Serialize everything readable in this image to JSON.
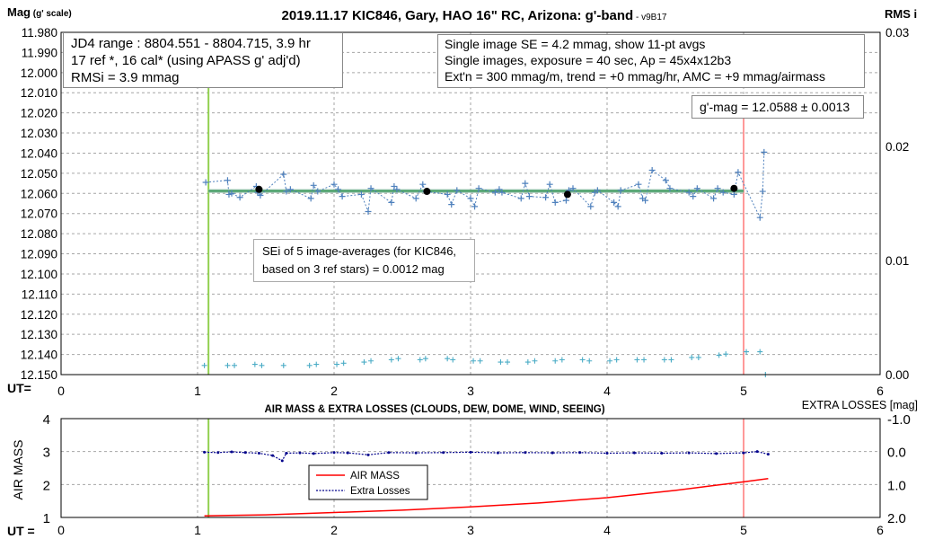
{
  "chart_data": [
    {
      "type": "scatter",
      "title": "2019.11.17 KIC846, Gary, HAO 16\" RC, Arizona: g'-band",
      "version": "- v9B17",
      "ylabel": "Mag",
      "ylabel_unit": "(g' scale)",
      "y2label": "RMS i",
      "xlabel": "UT=",
      "xlim": [
        0,
        6
      ],
      "ylim": [
        12.15,
        11.98
      ],
      "y2lim": [
        0,
        0.03
      ],
      "x_ticks": [
        "0",
        "1",
        "2",
        "3",
        "4",
        "5",
        "6"
      ],
      "y_ticks": [
        "11.980",
        "11.990",
        "12.000",
        "12.010",
        "12.020",
        "12.030",
        "12.040",
        "12.050",
        "12.060",
        "12.070",
        "12.080",
        "12.090",
        "12.100",
        "12.110",
        "12.120",
        "12.130",
        "12.140",
        "12.150"
      ],
      "y2_ticks": [
        "0.03",
        "0.02",
        "0.01",
        "0.00"
      ],
      "grid": true,
      "vertical_markers": {
        "start": {
          "x": 1.08,
          "color": "#92d050"
        },
        "end": {
          "x": 5.0,
          "color": "#ff9999"
        }
      },
      "mean_mag": 12.0588,
      "annotations": {
        "jd_box": [
          "JD4 range : 8804.551 - 8804.715,  3.9  hr",
          "17 ref *, 16 cal* (using APASS g' adj'd)",
          "RMSi = 3.9 mmag"
        ],
        "se_box": [
          "Single image SE = 4.2 mmag, show  11-pt avgs",
          "Single images, exposure = 40 sec, Ap = 45x4x12b3",
          "Ext'n = 300 mmag/m, trend =  +0 mmag/hr, AMC = +9 mmag/airmass"
        ],
        "gmag_box": "g'-mag = 12.0588 ± 0.0013",
        "sei_box": [
          "SEi of 5 image-averages (for KIC846,",
          "based on 3 ref stars) = 0.0012 mag"
        ]
      },
      "series": [
        {
          "kind": "single-image averages",
          "color": "#4f81bd",
          "x": [
            1.06,
            1.22,
            1.23,
            1.25,
            1.31,
            1.43,
            1.44,
            1.46,
            1.63,
            1.65,
            1.68,
            1.83,
            1.85,
            1.88,
            2.0,
            2.03,
            2.06,
            2.2,
            2.25,
            2.27,
            2.42,
            2.44,
            2.46,
            2.6,
            2.65,
            2.67,
            2.83,
            2.86,
            2.9,
            3.0,
            3.03,
            3.06,
            3.18,
            3.21,
            3.23,
            3.37,
            3.4,
            3.43,
            3.55,
            3.58,
            3.62,
            3.7,
            3.72,
            3.75,
            3.88,
            3.91,
            3.93,
            4.05,
            4.08,
            4.1,
            4.23,
            4.26,
            4.28,
            4.33,
            4.43,
            4.46,
            4.6,
            4.63,
            4.66,
            4.78,
            4.81,
            4.85,
            4.93,
            4.96,
            5.12,
            5.14,
            5.15
          ],
          "y": [
            12.0545,
            12.0535,
            12.0605,
            12.06,
            12.062,
            12.0565,
            12.0595,
            12.061,
            12.0505,
            12.059,
            12.058,
            12.0625,
            12.056,
            12.059,
            12.0555,
            12.058,
            12.0615,
            12.0605,
            12.069,
            12.0575,
            12.0645,
            12.0565,
            12.058,
            12.0625,
            12.0555,
            12.059,
            12.0605,
            12.0655,
            12.0585,
            12.0625,
            12.0665,
            12.0575,
            12.0595,
            12.058,
            12.0595,
            12.0625,
            12.055,
            12.0615,
            12.062,
            12.0555,
            12.0645,
            12.0635,
            12.0585,
            12.0575,
            12.0665,
            12.0595,
            12.0585,
            12.0645,
            12.0665,
            12.0585,
            12.0555,
            12.0625,
            12.0635,
            12.0485,
            12.0535,
            12.0575,
            12.0595,
            12.0615,
            12.0575,
            12.0625,
            12.0575,
            12.0595,
            12.0605,
            12.0495,
            12.072,
            12.059,
            12.0395
          ]
        },
        {
          "kind": "5 image-averages",
          "color": "#000000",
          "x": [
            1.45,
            2.68,
            3.71,
            4.93
          ],
          "y": [
            12.058,
            12.059,
            12.0605,
            12.0575
          ]
        },
        {
          "kind": "RMSi",
          "axis": "right",
          "color": "#4bacc6",
          "x": [
            1.05,
            1.22,
            1.27,
            1.42,
            1.47,
            1.63,
            1.82,
            1.87,
            2.02,
            2.07,
            2.22,
            2.27,
            2.42,
            2.47,
            2.63,
            2.67,
            2.83,
            2.87,
            3.02,
            3.07,
            3.22,
            3.27,
            3.42,
            3.47,
            3.62,
            3.67,
            3.82,
            3.87,
            4.02,
            4.07,
            4.22,
            4.27,
            4.42,
            4.47,
            4.62,
            4.67,
            4.82,
            4.87,
            5.02,
            5.12,
            5.16
          ],
          "y": [
            0.0008,
            0.0008,
            0.0008,
            0.0009,
            0.0008,
            0.0008,
            0.0008,
            0.0009,
            0.0009,
            0.001,
            0.0011,
            0.0012,
            0.0013,
            0.0014,
            0.0013,
            0.0014,
            0.0014,
            0.0013,
            0.0012,
            0.0012,
            0.0011,
            0.0011,
            0.0011,
            0.0012,
            0.0012,
            0.0013,
            0.0013,
            0.0012,
            0.0012,
            0.0013,
            0.0013,
            0.0013,
            0.0013,
            0.0013,
            0.0015,
            0.0015,
            0.0017,
            0.0018,
            0.002,
            0.002,
            0.0
          ]
        }
      ]
    },
    {
      "type": "line",
      "title": "AIR MASS & EXTRA LOSSES (CLOUDS, DEW, DOME, WIND, SEEING)",
      "ylabel": "AIR MASS",
      "y2label": "EXTRA LOSSES [mag]",
      "xlabel": "UT =",
      "xlim": [
        0,
        6
      ],
      "ylim": [
        1,
        4
      ],
      "y2lim": [
        2.0,
        -1.0
      ],
      "x_ticks": [
        "0",
        "1",
        "2",
        "3",
        "4",
        "5",
        "6"
      ],
      "y_ticks": [
        "4",
        "3",
        "2",
        "1"
      ],
      "y2_ticks": [
        "-1.0",
        "0.0",
        "1.0",
        "2.0"
      ],
      "grid": true,
      "vertical_markers": {
        "start": {
          "x": 1.08,
          "color": "#92d050"
        },
        "end": {
          "x": 5.0,
          "color": "#ff9999"
        }
      },
      "legend": {
        "position": "center-left",
        "entries": [
          "AIR MASS",
          "Extra Losses"
        ]
      },
      "series": [
        {
          "name": "AIR MASS",
          "color": "#ff0000",
          "axis": "left",
          "x": [
            1.05,
            1.5,
            2.0,
            2.5,
            3.0,
            3.5,
            4.0,
            4.5,
            4.8,
            5.0,
            5.18
          ],
          "y": [
            1.05,
            1.08,
            1.15,
            1.22,
            1.32,
            1.44,
            1.6,
            1.82,
            1.98,
            2.08,
            2.18
          ]
        },
        {
          "name": "Extra Losses",
          "color": "#00008b",
          "axis": "right",
          "x": [
            1.05,
            1.15,
            1.25,
            1.35,
            1.45,
            1.55,
            1.62,
            1.65,
            1.75,
            1.85,
            2.0,
            2.1,
            2.25,
            2.4,
            2.6,
            2.8,
            3.0,
            3.2,
            3.4,
            3.6,
            3.8,
            4.0,
            4.2,
            4.4,
            4.6,
            4.8,
            5.0,
            5.1,
            5.18
          ],
          "y": [
            0.02,
            0.03,
            0.01,
            0.03,
            0.05,
            0.12,
            0.28,
            0.05,
            0.04,
            0.06,
            0.03,
            0.04,
            0.1,
            0.03,
            0.04,
            0.03,
            0.02,
            0.04,
            0.03,
            0.04,
            0.03,
            0.05,
            0.04,
            0.05,
            0.04,
            0.06,
            0.04,
            0.0,
            0.08
          ]
        }
      ]
    }
  ]
}
